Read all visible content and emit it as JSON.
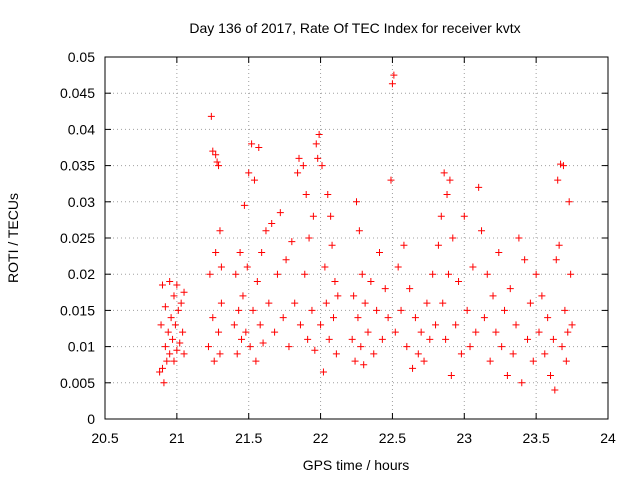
{
  "chart_data": {
    "type": "scatter",
    "title": "Day 136 of 2017, Rate Of TEC Index for receiver kvtx",
    "xlabel": "GPS time / hours",
    "ylabel": "ROTI / TECUs",
    "xlim": [
      20.5,
      24
    ],
    "ylim": [
      0,
      0.05
    ],
    "xticks": [
      "20.5",
      "21",
      "21.5",
      "22",
      "22.5",
      "23",
      "23.5",
      "24"
    ],
    "yticks": [
      "0",
      "0.005",
      "0.01",
      "0.015",
      "0.02",
      "0.025",
      "0.03",
      "0.035",
      "0.04",
      "0.045",
      "0.05"
    ],
    "grid": true,
    "marker": "plus",
    "color": "#ff0000",
    "series": [
      {
        "values": [
          [
            20.88,
            0.0065
          ],
          [
            20.89,
            0.013
          ],
          [
            20.9,
            0.007
          ],
          [
            20.9,
            0.0185
          ],
          [
            20.91,
            0.005
          ],
          [
            20.92,
            0.01
          ],
          [
            20.92,
            0.0155
          ],
          [
            20.93,
            0.008
          ],
          [
            20.94,
            0.012
          ],
          [
            20.95,
            0.019
          ],
          [
            20.95,
            0.009
          ],
          [
            20.96,
            0.014
          ],
          [
            20.97,
            0.011
          ],
          [
            20.98,
            0.008
          ],
          [
            20.98,
            0.017
          ],
          [
            20.99,
            0.013
          ],
          [
            21.0,
            0.0095
          ],
          [
            21.0,
            0.0185
          ],
          [
            21.01,
            0.015
          ],
          [
            21.02,
            0.0105
          ],
          [
            21.03,
            0.016
          ],
          [
            21.04,
            0.012
          ],
          [
            21.05,
            0.009
          ],
          [
            21.05,
            0.0175
          ],
          [
            21.22,
            0.01
          ],
          [
            21.23,
            0.02
          ],
          [
            21.24,
            0.0418
          ],
          [
            21.25,
            0.014
          ],
          [
            21.25,
            0.037
          ],
          [
            21.26,
            0.008
          ],
          [
            21.27,
            0.0365
          ],
          [
            21.27,
            0.023
          ],
          [
            21.28,
            0.0355
          ],
          [
            21.29,
            0.012
          ],
          [
            21.29,
            0.035
          ],
          [
            21.3,
            0.026
          ],
          [
            21.3,
            0.009
          ],
          [
            21.31,
            0.016
          ],
          [
            21.31,
            0.021
          ],
          [
            21.4,
            0.013
          ],
          [
            21.41,
            0.02
          ],
          [
            21.42,
            0.009
          ],
          [
            21.43,
            0.015
          ],
          [
            21.44,
            0.023
          ],
          [
            21.45,
            0.011
          ],
          [
            21.46,
            0.017
          ],
          [
            21.47,
            0.0295
          ],
          [
            21.48,
            0.012
          ],
          [
            21.49,
            0.021
          ],
          [
            21.5,
            0.034
          ],
          [
            21.51,
            0.01
          ],
          [
            21.52,
            0.038
          ],
          [
            21.53,
            0.015
          ],
          [
            21.54,
            0.033
          ],
          [
            21.55,
            0.008
          ],
          [
            21.56,
            0.019
          ],
          [
            21.57,
            0.0375
          ],
          [
            21.58,
            0.013
          ],
          [
            21.59,
            0.023
          ],
          [
            21.6,
            0.0105
          ],
          [
            21.62,
            0.026
          ],
          [
            21.64,
            0.016
          ],
          [
            21.66,
            0.027
          ],
          [
            21.68,
            0.012
          ],
          [
            21.7,
            0.02
          ],
          [
            21.72,
            0.0285
          ],
          [
            21.74,
            0.014
          ],
          [
            21.76,
            0.022
          ],
          [
            21.78,
            0.01
          ],
          [
            21.8,
            0.0245
          ],
          [
            21.82,
            0.016
          ],
          [
            21.84,
            0.034
          ],
          [
            21.85,
            0.036
          ],
          [
            21.86,
            0.013
          ],
          [
            21.88,
            0.035
          ],
          [
            21.89,
            0.02
          ],
          [
            21.9,
            0.031
          ],
          [
            21.91,
            0.011
          ],
          [
            21.92,
            0.025
          ],
          [
            21.94,
            0.015
          ],
          [
            21.95,
            0.028
          ],
          [
            21.96,
            0.0095
          ],
          [
            21.97,
            0.038
          ],
          [
            21.98,
            0.036
          ],
          [
            21.99,
            0.0393
          ],
          [
            22.0,
            0.013
          ],
          [
            22.01,
            0.035
          ],
          [
            22.02,
            0.0065
          ],
          [
            22.03,
            0.021
          ],
          [
            22.04,
            0.016
          ],
          [
            22.05,
            0.031
          ],
          [
            22.06,
            0.011
          ],
          [
            22.07,
            0.028
          ],
          [
            22.08,
            0.024
          ],
          [
            22.09,
            0.014
          ],
          [
            22.1,
            0.019
          ],
          [
            22.11,
            0.009
          ],
          [
            22.12,
            0.017
          ],
          [
            22.22,
            0.011
          ],
          [
            22.23,
            0.017
          ],
          [
            22.24,
            0.008
          ],
          [
            22.25,
            0.03
          ],
          [
            22.26,
            0.014
          ],
          [
            22.27,
            0.026
          ],
          [
            22.28,
            0.01
          ],
          [
            22.29,
            0.02
          ],
          [
            22.3,
            0.0075
          ],
          [
            22.31,
            0.016
          ],
          [
            22.33,
            0.012
          ],
          [
            22.35,
            0.019
          ],
          [
            22.37,
            0.009
          ],
          [
            22.39,
            0.015
          ],
          [
            22.41,
            0.023
          ],
          [
            22.43,
            0.011
          ],
          [
            22.45,
            0.018
          ],
          [
            22.47,
            0.014
          ],
          [
            22.49,
            0.033
          ],
          [
            22.5,
            0.0463
          ],
          [
            22.51,
            0.0475
          ],
          [
            22.52,
            0.012
          ],
          [
            22.54,
            0.021
          ],
          [
            22.56,
            0.015
          ],
          [
            22.58,
            0.024
          ],
          [
            22.6,
            0.01
          ],
          [
            22.62,
            0.018
          ],
          [
            22.64,
            0.007
          ],
          [
            22.66,
            0.014
          ],
          [
            22.68,
            0.009
          ],
          [
            22.7,
            0.012
          ],
          [
            22.72,
            0.008
          ],
          [
            22.74,
            0.016
          ],
          [
            22.76,
            0.011
          ],
          [
            22.78,
            0.02
          ],
          [
            22.8,
            0.013
          ],
          [
            22.82,
            0.024
          ],
          [
            22.84,
            0.028
          ],
          [
            22.85,
            0.016
          ],
          [
            22.86,
            0.034
          ],
          [
            22.87,
            0.011
          ],
          [
            22.88,
            0.031
          ],
          [
            22.89,
            0.02
          ],
          [
            22.9,
            0.033
          ],
          [
            22.91,
            0.006
          ],
          [
            22.92,
            0.025
          ],
          [
            22.94,
            0.013
          ],
          [
            22.96,
            0.019
          ],
          [
            22.98,
            0.009
          ],
          [
            23.0,
            0.028
          ],
          [
            23.02,
            0.015
          ],
          [
            23.04,
            0.01
          ],
          [
            23.06,
            0.021
          ],
          [
            23.08,
            0.012
          ],
          [
            23.1,
            0.032
          ],
          [
            23.12,
            0.026
          ],
          [
            23.14,
            0.014
          ],
          [
            23.16,
            0.02
          ],
          [
            23.18,
            0.008
          ],
          [
            23.2,
            0.017
          ],
          [
            23.22,
            0.012
          ],
          [
            23.24,
            0.023
          ],
          [
            23.26,
            0.01
          ],
          [
            23.28,
            0.015
          ],
          [
            23.3,
            0.006
          ],
          [
            23.32,
            0.018
          ],
          [
            23.34,
            0.009
          ],
          [
            23.36,
            0.013
          ],
          [
            23.38,
            0.025
          ],
          [
            23.4,
            0.005
          ],
          [
            23.42,
            0.022
          ],
          [
            23.44,
            0.011
          ],
          [
            23.46,
            0.016
          ],
          [
            23.48,
            0.008
          ],
          [
            23.5,
            0.02
          ],
          [
            23.52,
            0.012
          ],
          [
            23.54,
            0.017
          ],
          [
            23.56,
            0.009
          ],
          [
            23.58,
            0.014
          ],
          [
            23.6,
            0.006
          ],
          [
            23.62,
            0.011
          ],
          [
            23.63,
            0.004
          ],
          [
            23.64,
            0.022
          ],
          [
            23.65,
            0.033
          ],
          [
            23.66,
            0.024
          ],
          [
            23.67,
            0.0352
          ],
          [
            23.68,
            0.01
          ],
          [
            23.69,
            0.035
          ],
          [
            23.7,
            0.015
          ],
          [
            23.71,
            0.008
          ],
          [
            23.72,
            0.012
          ],
          [
            23.73,
            0.03
          ],
          [
            23.74,
            0.02
          ],
          [
            23.75,
            0.013
          ]
        ]
      }
    ]
  }
}
